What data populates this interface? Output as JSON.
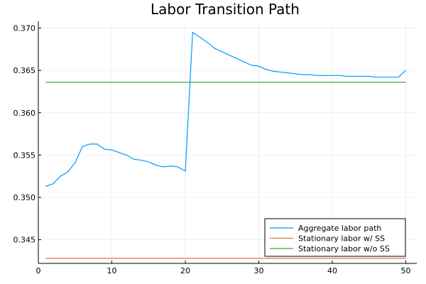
{
  "chart_data": {
    "type": "line",
    "title": "Labor Transition Path",
    "xlabel": "",
    "ylabel": "",
    "xlim": [
      0,
      51.5
    ],
    "ylim": [
      0.3422,
      0.3708
    ],
    "xticks": [
      0,
      10,
      20,
      30,
      40,
      50
    ],
    "xtick_labels": [
      "0",
      "10",
      "20",
      "30",
      "40",
      "50"
    ],
    "yticks": [
      0.345,
      0.35,
      0.355,
      0.36,
      0.365,
      0.37
    ],
    "ytick_labels": [
      "0.345",
      "0.350",
      "0.355",
      "0.360",
      "0.365",
      "0.370"
    ],
    "grid": true,
    "legend_position": "bottom-right",
    "series": [
      {
        "name": "Aggregate labor path",
        "color": "#009AFA",
        "x": [
          1,
          2,
          3,
          4,
          5,
          6,
          7,
          8,
          9,
          10,
          11,
          12,
          13,
          14,
          15,
          16,
          17,
          18,
          19,
          20,
          21,
          22,
          23,
          24,
          25,
          26,
          27,
          28,
          29,
          30,
          31,
          32,
          33,
          34,
          35,
          36,
          37,
          38,
          39,
          40,
          41,
          42,
          43,
          44,
          45,
          46,
          47,
          48,
          49,
          50
        ],
        "y": [
          0.3513,
          0.3516,
          0.3525,
          0.353,
          0.3541,
          0.356,
          0.3563,
          0.3563,
          0.3557,
          0.3556,
          0.3553,
          0.355,
          0.3545,
          0.3544,
          0.3542,
          0.3538,
          0.3536,
          0.3537,
          0.3536,
          0.3531,
          0.3695,
          0.3689,
          0.3683,
          0.3676,
          0.3672,
          0.3668,
          0.3664,
          0.366,
          0.3656,
          0.3655,
          0.3651,
          0.3649,
          0.3648,
          0.3647,
          0.3646,
          0.3645,
          0.3645,
          0.3644,
          0.3644,
          0.3644,
          0.3644,
          0.3643,
          0.3643,
          0.3643,
          0.3643,
          0.3642,
          0.3642,
          0.3642,
          0.3642,
          0.365
        ]
      },
      {
        "name": "Stationary labor w/ SS",
        "color": "#E36F47",
        "x": [
          1,
          50
        ],
        "y": [
          0.3428,
          0.3428
        ]
      },
      {
        "name": "Stationary labor w/o SS",
        "color": "#3EA44E",
        "x": [
          1,
          50
        ],
        "y": [
          0.3636,
          0.3636
        ]
      }
    ]
  }
}
